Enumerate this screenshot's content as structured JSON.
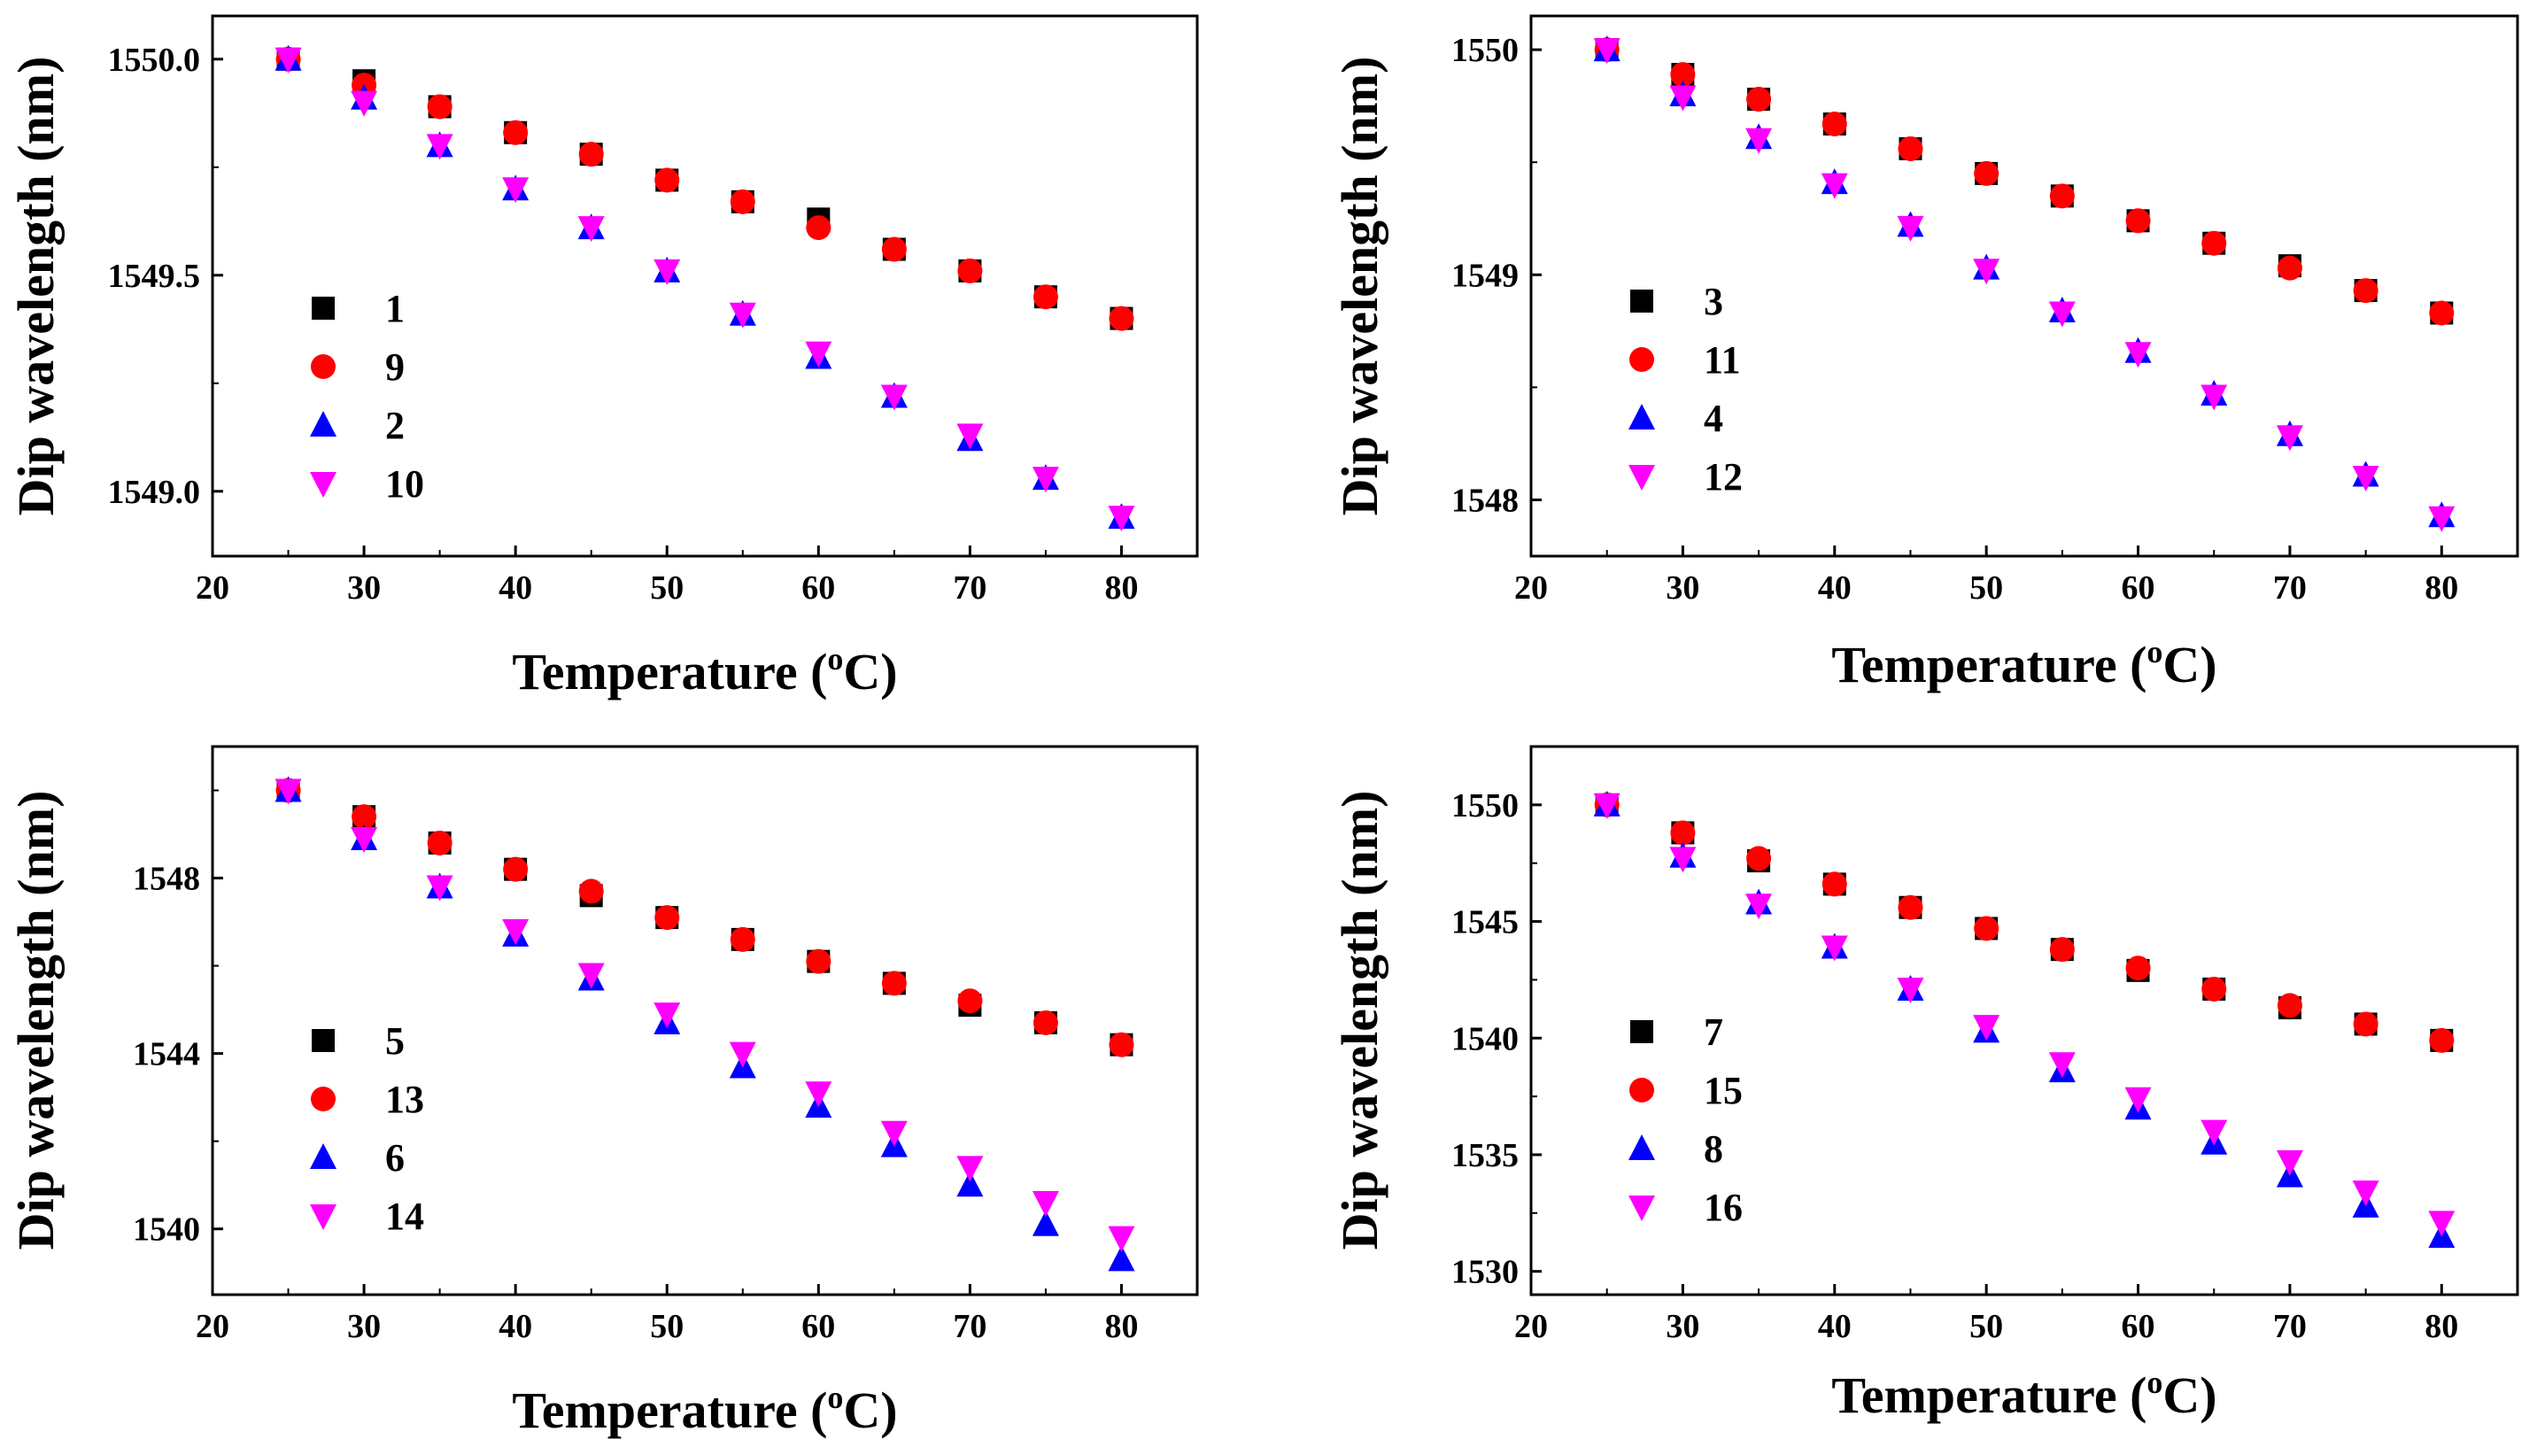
{
  "figure": {
    "description_panels": [
      "top-left",
      "top-right",
      "bottom-left",
      "bottom-right"
    ]
  },
  "chart_data": [
    {
      "type": "scatter",
      "position": "top-left",
      "title": "",
      "xlabel": "Temperature (oC)",
      "xlabel_main": "Temperature (",
      "xlabel_sup": "o",
      "xlabel_end": "C)",
      "ylabel": "Dip wavelength (nm)",
      "xlim": [
        20,
        85
      ],
      "ylim": [
        1548.85,
        1550.1
      ],
      "xticks": [
        20,
        30,
        40,
        50,
        60,
        70,
        80
      ],
      "yticks": [
        1549.0,
        1549.5,
        1550.0
      ],
      "ytick_labels": [
        "1549.0",
        "1549.5",
        "1550.0"
      ],
      "x": [
        25,
        30,
        35,
        40,
        45,
        50,
        55,
        60,
        65,
        70,
        75,
        80
      ],
      "series": [
        {
          "name": "1",
          "marker": "square",
          "color": "#000000",
          "values": [
            1550.0,
            1549.95,
            1549.89,
            1549.83,
            1549.78,
            1549.72,
            1549.67,
            1549.63,
            1549.56,
            1549.51,
            1549.45,
            1549.4
          ]
        },
        {
          "name": "9",
          "marker": "circle",
          "color": "#ff0000",
          "values": [
            1550.0,
            1549.94,
            1549.89,
            1549.83,
            1549.78,
            1549.72,
            1549.67,
            1549.61,
            1549.56,
            1549.51,
            1549.45,
            1549.4
          ]
        },
        {
          "name": "2",
          "marker": "triangle-up",
          "color": "#0000ff",
          "values": [
            1550.0,
            1549.91,
            1549.8,
            1549.7,
            1549.61,
            1549.51,
            1549.41,
            1549.31,
            1549.22,
            1549.12,
            1549.03,
            1548.94
          ]
        },
        {
          "name": "10",
          "marker": "triangle-down",
          "color": "#ff00ff",
          "values": [
            1550.0,
            1549.9,
            1549.8,
            1549.7,
            1549.61,
            1549.51,
            1549.41,
            1549.32,
            1549.22,
            1549.13,
            1549.03,
            1548.94
          ]
        }
      ],
      "legend_position": "left"
    },
    {
      "type": "scatter",
      "position": "top-right",
      "title": "",
      "xlabel": "Temperature (oC)",
      "xlabel_main": "Temperature (",
      "xlabel_sup": "o",
      "xlabel_end": "C)",
      "ylabel": "Dip wavelength (nm)",
      "xlim": [
        20,
        85
      ],
      "ylim": [
        1547.75,
        1550.15
      ],
      "xticks": [
        20,
        30,
        40,
        50,
        60,
        70,
        80
      ],
      "yticks": [
        1548,
        1549,
        1550
      ],
      "ytick_labels": [
        "1548",
        "1549",
        "1550"
      ],
      "x": [
        25,
        30,
        35,
        40,
        45,
        50,
        55,
        60,
        65,
        70,
        75,
        80
      ],
      "series": [
        {
          "name": "3",
          "marker": "square",
          "color": "#000000",
          "values": [
            1550.0,
            1549.89,
            1549.78,
            1549.67,
            1549.56,
            1549.45,
            1549.35,
            1549.24,
            1549.14,
            1549.04,
            1548.93,
            1548.83
          ]
        },
        {
          "name": "11",
          "marker": "circle",
          "color": "#ff0000",
          "values": [
            1550.0,
            1549.89,
            1549.78,
            1549.67,
            1549.56,
            1549.45,
            1549.35,
            1549.24,
            1549.14,
            1549.03,
            1548.93,
            1548.83
          ]
        },
        {
          "name": "4",
          "marker": "triangle-up",
          "color": "#0000ff",
          "values": [
            1550.0,
            1549.8,
            1549.61,
            1549.41,
            1549.22,
            1549.03,
            1548.84,
            1548.66,
            1548.47,
            1548.29,
            1548.11,
            1547.93
          ]
        },
        {
          "name": "12",
          "marker": "triangle-down",
          "color": "#ff00ff",
          "values": [
            1550.0,
            1549.79,
            1549.6,
            1549.4,
            1549.21,
            1549.02,
            1548.83,
            1548.65,
            1548.46,
            1548.28,
            1548.1,
            1547.92
          ]
        }
      ],
      "legend_position": "left"
    },
    {
      "type": "scatter",
      "position": "bottom-left",
      "title": "",
      "xlabel": "Temperature (oC)",
      "xlabel_main": "Temperature (",
      "xlabel_sup": "o",
      "xlabel_end": "C)",
      "ylabel": "Dip wavelength (nm)",
      "xlim": [
        20,
        85
      ],
      "ylim": [
        1538.5,
        1551.0
      ],
      "xticks": [
        20,
        30,
        40,
        50,
        60,
        70,
        80
      ],
      "yticks": [
        1540,
        1544,
        1548
      ],
      "ytick_labels": [
        "1540",
        "1544",
        "1548"
      ],
      "x": [
        25,
        30,
        35,
        40,
        45,
        50,
        55,
        60,
        65,
        70,
        75,
        80
      ],
      "series": [
        {
          "name": "5",
          "marker": "square",
          "color": "#000000",
          "values": [
            1550.0,
            1549.4,
            1548.8,
            1548.2,
            1547.6,
            1547.1,
            1546.6,
            1546.1,
            1545.6,
            1545.1,
            1544.7,
            1544.2
          ]
        },
        {
          "name": "13",
          "marker": "circle",
          "color": "#ff0000",
          "values": [
            1550.0,
            1549.4,
            1548.8,
            1548.2,
            1547.7,
            1547.1,
            1546.6,
            1546.1,
            1545.6,
            1545.2,
            1544.7,
            1544.2
          ]
        },
        {
          "name": "6",
          "marker": "triangle-up",
          "color": "#0000ff",
          "values": [
            1550.0,
            1548.9,
            1547.8,
            1546.7,
            1545.7,
            1544.7,
            1543.7,
            1542.8,
            1541.9,
            1541.0,
            1540.1,
            1539.3
          ]
        },
        {
          "name": "14",
          "marker": "triangle-down",
          "color": "#ff00ff",
          "values": [
            1550.0,
            1548.9,
            1547.8,
            1546.8,
            1545.8,
            1544.9,
            1544.0,
            1543.1,
            1542.2,
            1541.4,
            1540.6,
            1539.8
          ]
        }
      ],
      "legend_position": "left"
    },
    {
      "type": "scatter",
      "position": "bottom-right",
      "title": "",
      "xlabel": "Temperature (oC)",
      "xlabel_main": "Temperature (",
      "xlabel_sup": "o",
      "xlabel_end": "C)",
      "ylabel": "Dip wavelength (nm)",
      "xlim": [
        20,
        85
      ],
      "ylim": [
        1529.0,
        1552.5
      ],
      "xticks": [
        20,
        30,
        40,
        50,
        60,
        70,
        80
      ],
      "yticks": [
        1530,
        1535,
        1540,
        1545,
        1550
      ],
      "ytick_labels": [
        "1530",
        "1535",
        "1540",
        "1545",
        "1550"
      ],
      "x": [
        25,
        30,
        35,
        40,
        45,
        50,
        55,
        60,
        65,
        70,
        75,
        80
      ],
      "series": [
        {
          "name": "7",
          "marker": "square",
          "color": "#000000",
          "values": [
            1550.0,
            1548.8,
            1547.6,
            1546.6,
            1545.6,
            1544.7,
            1543.8,
            1542.9,
            1542.1,
            1541.3,
            1540.6,
            1539.9
          ]
        },
        {
          "name": "15",
          "marker": "circle",
          "color": "#ff0000",
          "values": [
            1550.0,
            1548.8,
            1547.7,
            1546.6,
            1545.6,
            1544.7,
            1543.8,
            1543.0,
            1542.1,
            1541.4,
            1540.6,
            1539.9
          ]
        },
        {
          "name": "8",
          "marker": "triangle-up",
          "color": "#0000ff",
          "values": [
            1550.0,
            1547.8,
            1545.8,
            1543.9,
            1542.1,
            1540.3,
            1538.6,
            1537.0,
            1535.5,
            1534.1,
            1532.8,
            1531.5
          ]
        },
        {
          "name": "16",
          "marker": "triangle-down",
          "color": "#ff00ff",
          "values": [
            1550.0,
            1547.7,
            1545.7,
            1543.9,
            1542.1,
            1540.5,
            1538.9,
            1537.4,
            1536.0,
            1534.7,
            1533.4,
            1532.1
          ]
        }
      ],
      "legend_position": "left"
    }
  ]
}
